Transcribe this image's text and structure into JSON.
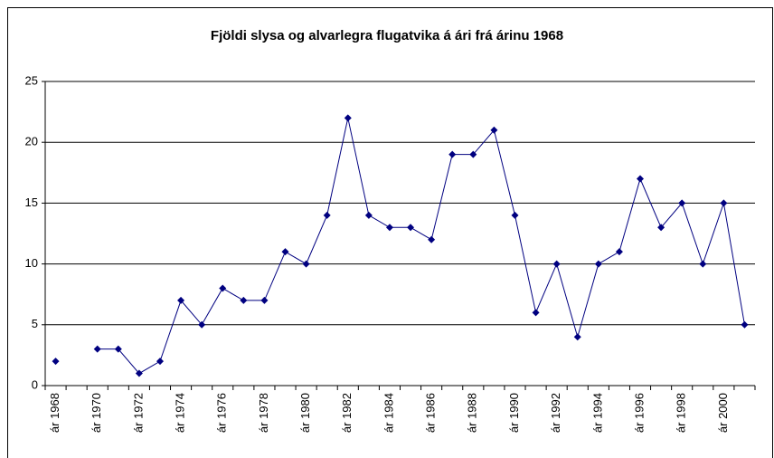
{
  "chart_data": {
    "type": "line",
    "title": "Fjöldi slysa og alvarlegra flugatvika á ári frá árinu 1968",
    "categories": [
      "ár 1968",
      null,
      "ár 1970",
      null,
      "ár 1972",
      null,
      "ár 1974",
      null,
      "ár 1976",
      null,
      "ár 1978",
      null,
      "ár 1980",
      null,
      "ár 1982",
      null,
      "ár 1984",
      null,
      "ár 1986",
      null,
      "ár 1988",
      null,
      "ár 1990",
      null,
      "ár 1992",
      null,
      "ár 1994",
      null,
      "ár 1996",
      null,
      "ár 1998",
      null,
      "ár 2000",
      null
    ],
    "series": [
      {
        "color": "#000080",
        "values": [
          2,
          null,
          3,
          3,
          1,
          2,
          7,
          5,
          8,
          7,
          7,
          11,
          10,
          14,
          22,
          14,
          13,
          13,
          12,
          19,
          19,
          21,
          14,
          6,
          10,
          4,
          10,
          11,
          17,
          13,
          15,
          10,
          15,
          5
        ]
      }
    ],
    "ylim": [
      0,
      25
    ],
    "yticks": [
      0,
      5,
      10,
      15,
      20,
      25
    ],
    "grid": true
  }
}
